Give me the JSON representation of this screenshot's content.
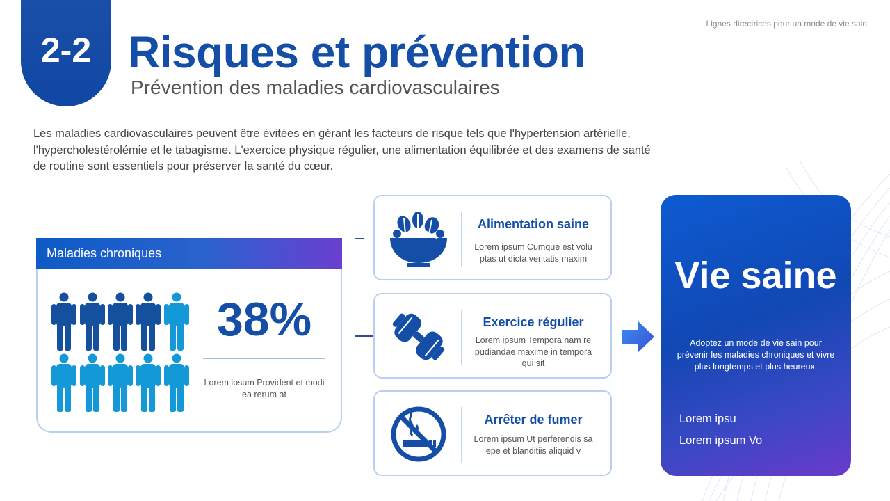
{
  "header": {
    "badge": "2-2",
    "title": "Risques et prévention",
    "subtitle": "Prévention des maladies cardiovasculaires",
    "top_right_label": "Lignes directrices pour un mode de vie sain"
  },
  "intro": "Les maladies cardiovasculaires peuvent être évitées en gérant les facteurs de risque tels que l'hypertension artérielle, l'hypercholestérolémie et le tabagisme. L'exercice physique régulier, une alimentation équilibrée et des examens de santé de routine sont essentiels pour préserver la santé du cœur.",
  "chronic": {
    "header": "Maladies chroniques",
    "percent": "38%",
    "caption": "Lorem ipsum Provident et modi ea rerum at",
    "people_total": 10,
    "people_dark": 4
  },
  "tips": [
    {
      "icon": "salad-bowl-icon",
      "title": "Alimentation saine",
      "text": "Lorem ipsum Cumque est volu ptas ut dicta veritatis maxim"
    },
    {
      "icon": "dumbbell-icon",
      "title": "Exercice régulier",
      "text": "Lorem ipsum Tempora nam re pudiandae maxime in tempora qui sit"
    },
    {
      "icon": "no-smoking-icon",
      "title": "Arrêter de fumer",
      "text": "Lorem ipsum Ut perferendis sa epe et blanditiis aliquid v"
    }
  ],
  "vie": {
    "title": "Vie saine",
    "text": "Adoptez un mode de vie sain pour prévenir les maladies chroniques et vivre plus longtemps et plus heureux.",
    "items": [
      "Lorem ipsu",
      "Lorem ipsum Vo"
    ]
  },
  "colors": {
    "primary": "#154ea6",
    "dark_person": "#14509e",
    "light_person": "#1398d8",
    "card_border": "#b9d0ee"
  }
}
